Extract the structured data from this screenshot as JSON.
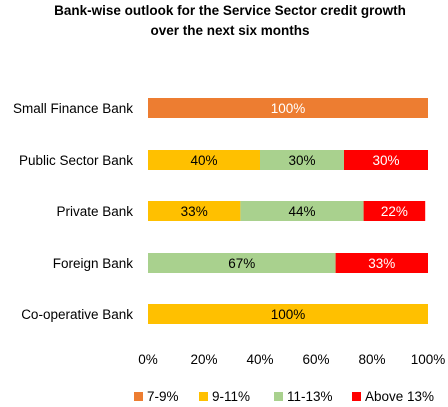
{
  "chart_data": {
    "type": "bar",
    "orientation": "horizontal",
    "stacked": true,
    "title": "Bank-wise outlook for the Service Sector credit growth over the next six months",
    "title_lines": [
      "Bank-wise outlook for the Service Sector credit growth",
      "over the next six months"
    ],
    "categories": [
      "Small Finance Bank",
      "Public Sector Bank",
      "Private Bank",
      "Foreign Bank",
      "Co-operative Bank"
    ],
    "series": [
      {
        "name": "7-9%",
        "color": "#ED7D31",
        "values": [
          100,
          0,
          0,
          0,
          0
        ]
      },
      {
        "name": "9-11%",
        "color": "#FFC000",
        "values": [
          0,
          40,
          33,
          0,
          100
        ]
      },
      {
        "name": "11-13%",
        "color": "#A9D18E",
        "values": [
          0,
          30,
          44,
          67,
          0
        ]
      },
      {
        "name": "Above 13%",
        "color": "#FF0000",
        "values": [
          0,
          30,
          22,
          33,
          0
        ]
      }
    ],
    "xlim": [
      0,
      100
    ],
    "xticks": [
      "0%",
      "20%",
      "40%",
      "60%",
      "80%",
      "100%"
    ],
    "grid": false,
    "legend_position": "bottom"
  }
}
